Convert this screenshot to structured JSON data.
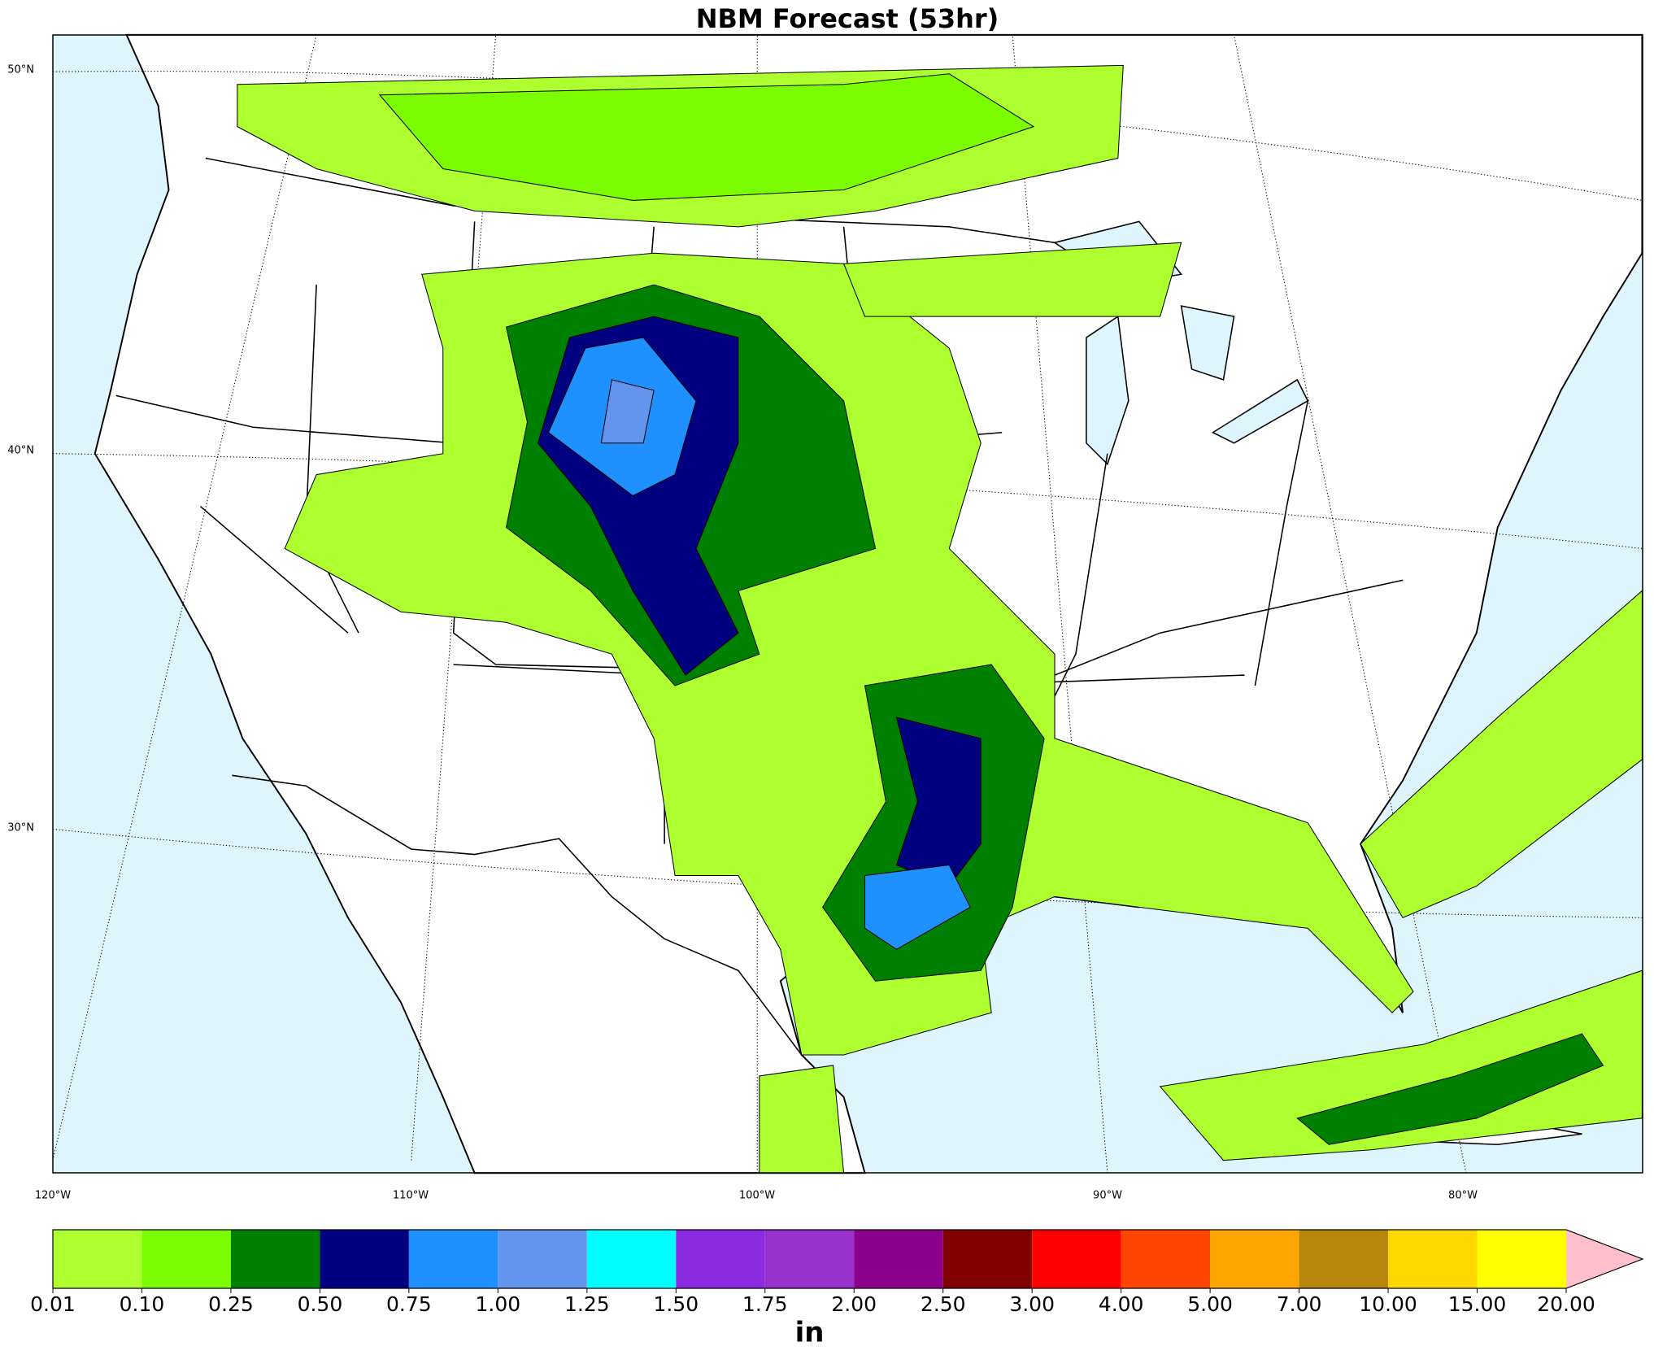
{
  "map": {
    "title": "NBM Forecast (53hr)",
    "lat_labels": [
      "50°N",
      "40°N",
      "30°N"
    ],
    "lon_labels": [
      "120°W",
      "110°W",
      "100°W",
      "90°W",
      "80°W"
    ]
  },
  "colorbar": {
    "label": "in",
    "levels": [
      0.01,
      {
        "value": 0.1,
        "label": "0.10"
      },
      0.25,
      {
        "value": 0.5,
        "label": "0.50"
      },
      0.75,
      {
        "value": 1,
        "label": "1.00"
      },
      1.25,
      {
        "value": 1.5,
        "label": "1.50"
      },
      1.75,
      {
        "value": 2,
        "label": "2.00"
      },
      {
        "value": 2.5,
        "label": "2.50"
      },
      {
        "value": 3,
        "label": "3.00"
      },
      {
        "value": 4,
        "label": "4.00"
      },
      {
        "value": 5,
        "label": "5.00"
      },
      {
        "value": 7,
        "label": "7.00"
      },
      {
        "value": 10,
        "label": "10.00"
      },
      {
        "value": 15,
        "label": "15.00"
      },
      {
        "value": 20,
        "label": "20.00"
      }
    ],
    "colors": [
      "#adff2f",
      "#7cfc00",
      "#008000",
      "#000080",
      "#1e90ff",
      "#6495ed",
      "#00ffff",
      "#8a2be2",
      "#9932cc",
      "#8b008b",
      "#800000",
      "#ff0000",
      "#ff4500",
      "#ffa500",
      "#b8860b",
      "#ffd700",
      "#ffff00"
    ],
    "extend_color": "#ffc0cb"
  }
}
